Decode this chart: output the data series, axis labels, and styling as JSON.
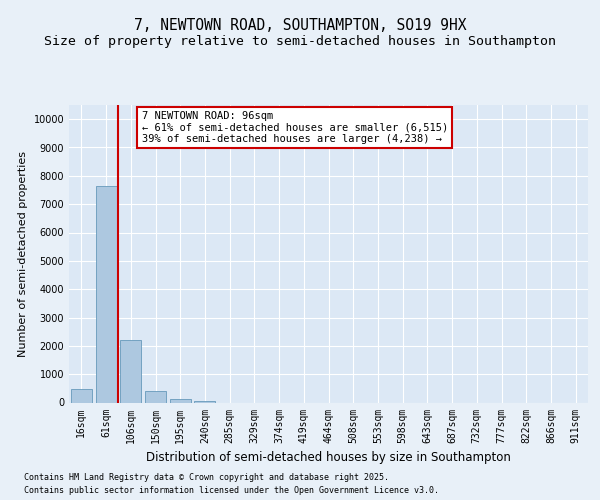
{
  "title_line1": "7, NEWTOWN ROAD, SOUTHAMPTON, SO19 9HX",
  "title_line2": "Size of property relative to semi-detached houses in Southampton",
  "xlabel": "Distribution of semi-detached houses by size in Southampton",
  "ylabel": "Number of semi-detached properties",
  "categories": [
    "16sqm",
    "61sqm",
    "106sqm",
    "150sqm",
    "195sqm",
    "240sqm",
    "285sqm",
    "329sqm",
    "374sqm",
    "419sqm",
    "464sqm",
    "508sqm",
    "553sqm",
    "598sqm",
    "643sqm",
    "687sqm",
    "732sqm",
    "777sqm",
    "822sqm",
    "866sqm",
    "911sqm"
  ],
  "values": [
    490,
    7650,
    2200,
    390,
    120,
    50,
    0,
    0,
    0,
    0,
    0,
    0,
    0,
    0,
    0,
    0,
    0,
    0,
    0,
    0,
    0
  ],
  "bar_color": "#adc8e0",
  "bar_edge_color": "#6699bb",
  "vline_x": 1.5,
  "vline_color": "#cc0000",
  "annotation_title": "7 NEWTOWN ROAD: 96sqm",
  "annotation_line1": "← 61% of semi-detached houses are smaller (6,515)",
  "annotation_line2": "39% of semi-detached houses are larger (4,238) →",
  "annotation_box_color": "#ffffff",
  "annotation_border_color": "#cc0000",
  "ylim": [
    0,
    10500
  ],
  "yticks": [
    0,
    1000,
    2000,
    3000,
    4000,
    5000,
    6000,
    7000,
    8000,
    9000,
    10000
  ],
  "footer_line1": "Contains HM Land Registry data © Crown copyright and database right 2025.",
  "footer_line2": "Contains public sector information licensed under the Open Government Licence v3.0.",
  "bg_color": "#e8f0f8",
  "plot_bg_color": "#dce8f5",
  "grid_color": "#ffffff",
  "title_fontsize": 10.5,
  "subtitle_fontsize": 9.5,
  "tick_fontsize": 7,
  "ylabel_fontsize": 8,
  "xlabel_fontsize": 8.5,
  "annotation_fontsize": 7.5,
  "footer_fontsize": 6
}
